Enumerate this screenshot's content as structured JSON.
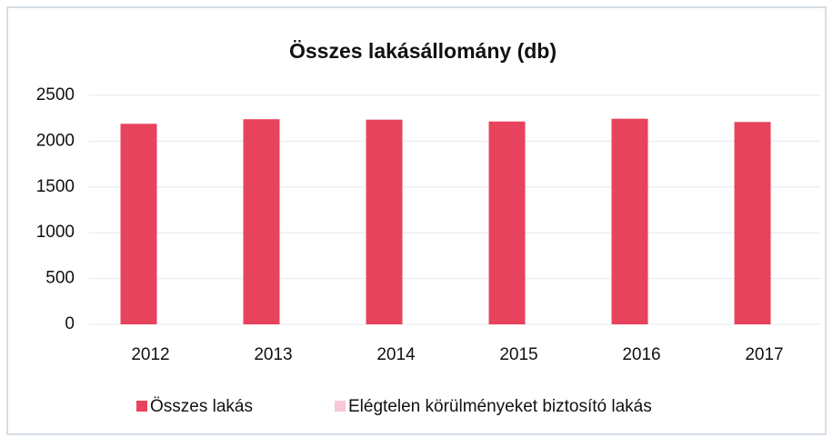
{
  "chart_data": {
    "type": "bar",
    "title": "Összes lakásállomány (db)",
    "categories": [
      "2012",
      "2013",
      "2014",
      "2015",
      "2016",
      "2017"
    ],
    "series": [
      {
        "name": "Összes lakás",
        "color": "#e8435c",
        "values": [
          2190,
          2240,
          2235,
          2215,
          2245,
          2210
        ]
      },
      {
        "name": "Elégtelen körülményeket biztosító lakás",
        "color": "#f9c8d8",
        "values": [
          0,
          0,
          0,
          0,
          0,
          0
        ]
      }
    ],
    "ylim": [
      0,
      2500
    ],
    "yticks": [
      0,
      500,
      1000,
      1500,
      2000,
      2500
    ],
    "grid": true,
    "legend": "bottom"
  }
}
